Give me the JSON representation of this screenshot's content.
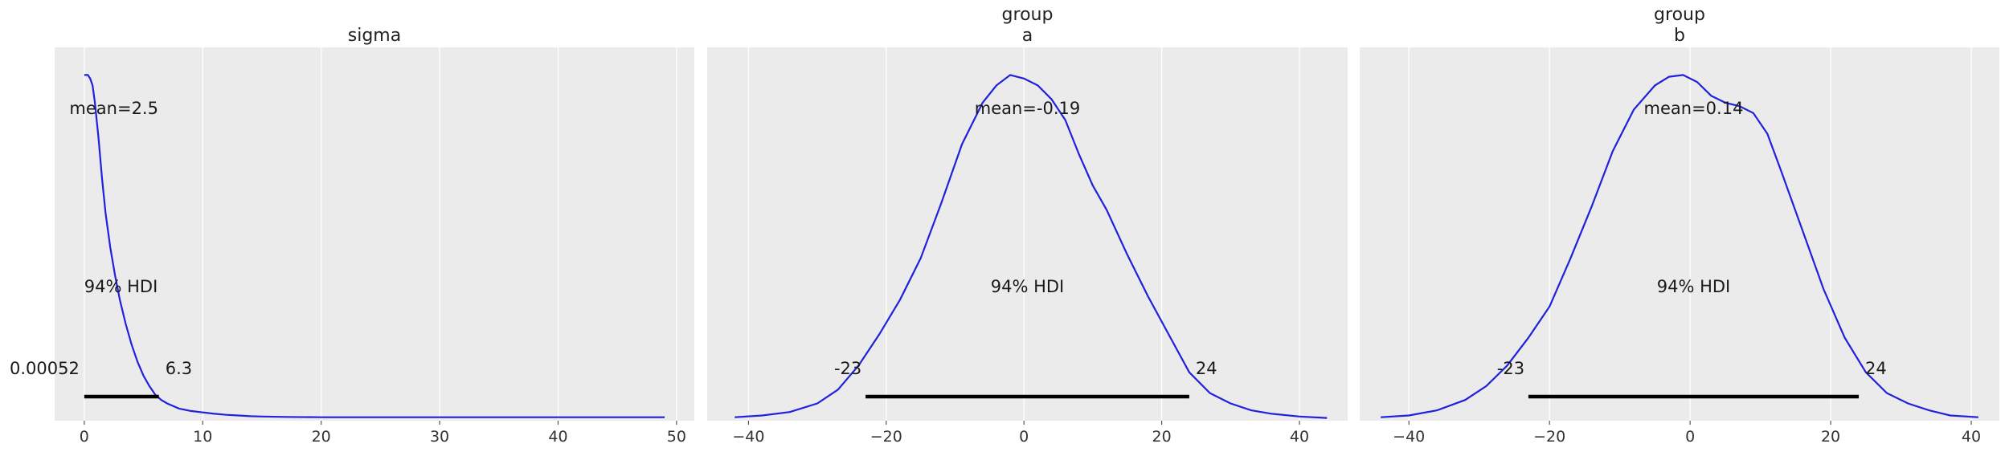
{
  "chart_data": [
    {
      "type": "line",
      "title": [
        "sigma"
      ],
      "xlim": [
        -2.5,
        51.5
      ],
      "ylim": [
        0,
        1.08
      ],
      "xticks": [
        0,
        10,
        20,
        30,
        40,
        50
      ],
      "xtick_labels": [
        "0",
        "10",
        "20",
        "30",
        "40",
        "50"
      ],
      "grid": true,
      "series": [
        {
          "x": [
            0,
            0.3,
            0.5,
            0.7,
            0.9,
            1.2,
            1.5,
            1.8,
            2.2,
            2.6,
            3.0,
            3.5,
            4.0,
            4.5,
            5.0,
            5.5,
            6.0,
            6.5,
            7.0,
            8.0,
            9.0,
            10.0,
            11.0,
            12.0,
            13.0,
            14.0,
            15.0,
            17.0,
            20.0,
            25.0,
            30.0,
            35.0,
            40.0,
            45.0,
            49.0
          ],
          "y": [
            1.0,
            1.0,
            0.99,
            0.97,
            0.92,
            0.82,
            0.7,
            0.6,
            0.5,
            0.42,
            0.35,
            0.28,
            0.22,
            0.17,
            0.13,
            0.1,
            0.075,
            0.06,
            0.05,
            0.035,
            0.028,
            0.024,
            0.02,
            0.017,
            0.015,
            0.013,
            0.012,
            0.011,
            0.01,
            0.01,
            0.01,
            0.01,
            0.01,
            0.01,
            0.01
          ]
        }
      ],
      "mean_label": "mean=2.5",
      "hdi_label": "94% HDI",
      "hdi": [
        0.00052,
        6.3
      ],
      "hdi_low_label": "0.00052",
      "hdi_high_label": "6.3"
    },
    {
      "type": "line",
      "title": [
        "group",
        "a"
      ],
      "xlim": [
        -46,
        47
      ],
      "ylim": [
        0,
        1.08
      ],
      "xticks": [
        -40,
        -20,
        0,
        20,
        40
      ],
      "xtick_labels": [
        "−40",
        "−20",
        "0",
        "20",
        "40"
      ],
      "grid": true,
      "series": [
        {
          "x": [
            -42,
            -38,
            -34,
            -30,
            -27,
            -24,
            -21,
            -18,
            -15,
            -12,
            -9,
            -6,
            -4,
            -2,
            0,
            2,
            4,
            6,
            8,
            10,
            12,
            15,
            18,
            21,
            24,
            27,
            30,
            33,
            36,
            40,
            44
          ],
          "y": [
            0.01,
            0.015,
            0.025,
            0.05,
            0.09,
            0.16,
            0.25,
            0.35,
            0.47,
            0.63,
            0.8,
            0.92,
            0.97,
            1.0,
            0.99,
            0.97,
            0.93,
            0.87,
            0.77,
            0.68,
            0.61,
            0.48,
            0.36,
            0.25,
            0.14,
            0.08,
            0.05,
            0.03,
            0.02,
            0.012,
            0.008
          ]
        }
      ],
      "mean_label": "mean=-0.19",
      "hdi_label": "94% HDI",
      "hdi": [
        -23,
        24
      ],
      "hdi_low_label": "-23",
      "hdi_high_label": "24"
    },
    {
      "type": "line",
      "title": [
        "group",
        "b"
      ],
      "xlim": [
        -47,
        44
      ],
      "ylim": [
        0,
        1.08
      ],
      "xticks": [
        -40,
        -20,
        0,
        20,
        40
      ],
      "xtick_labels": [
        "−40",
        "−20",
        "0",
        "20",
        "40"
      ],
      "grid": true,
      "series": [
        {
          "x": [
            -44,
            -40,
            -36,
            -32,
            -29,
            -26,
            -23,
            -20,
            -17,
            -14,
            -11,
            -8,
            -5,
            -3,
            -1,
            1,
            3,
            5,
            7,
            9,
            11,
            13,
            16,
            19,
            22,
            25,
            28,
            31,
            34,
            37,
            41
          ],
          "y": [
            0.01,
            0.015,
            0.03,
            0.06,
            0.1,
            0.16,
            0.24,
            0.33,
            0.47,
            0.62,
            0.78,
            0.9,
            0.97,
            0.995,
            1.0,
            0.98,
            0.94,
            0.92,
            0.91,
            0.89,
            0.83,
            0.72,
            0.55,
            0.38,
            0.24,
            0.14,
            0.08,
            0.05,
            0.03,
            0.015,
            0.01
          ]
        }
      ],
      "mean_label": "mean=0.14",
      "hdi_label": "94% HDI",
      "hdi": [
        -23,
        24
      ],
      "hdi_low_label": "-23",
      "hdi_high_label": "24"
    }
  ]
}
